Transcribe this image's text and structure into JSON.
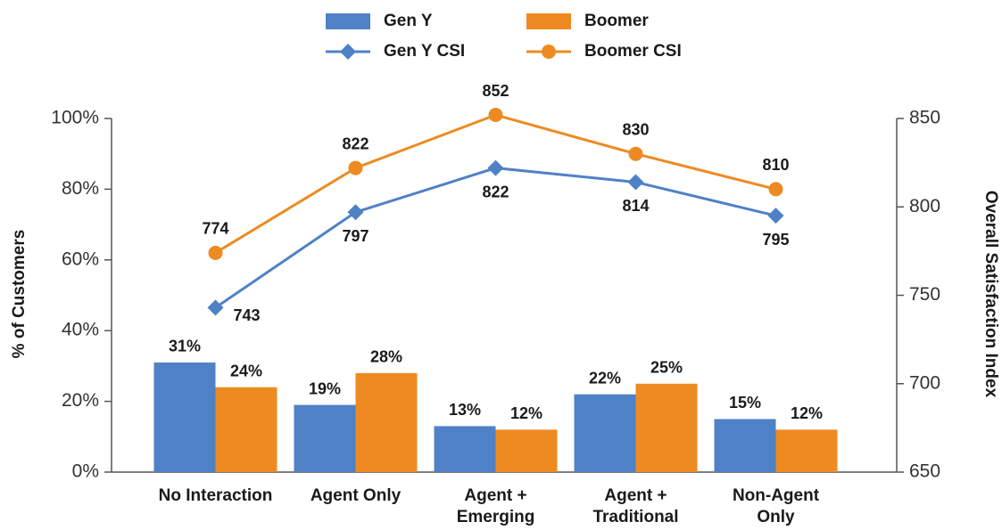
{
  "chart_data": {
    "type": "combo",
    "categories": [
      "No Interaction",
      "Agent Only",
      "Agent +\nEmerging",
      "Agent +\nTraditional",
      "Non-Agent\nOnly"
    ],
    "y_label": "% of Customers",
    "y2_label": "Overall Satisfaction Index",
    "ylim": [
      0,
      100
    ],
    "yticks": [
      {
        "value": 0,
        "label": "0%"
      },
      {
        "value": 20,
        "label": "20%"
      },
      {
        "value": 40,
        "label": "40%"
      },
      {
        "value": 60,
        "label": "60%"
      },
      {
        "value": 80,
        "label": "80%"
      },
      {
        "value": 100,
        "label": "100%"
      }
    ],
    "y2lim": [
      650,
      850
    ],
    "y2ticks": [
      650,
      700,
      750,
      800,
      850
    ],
    "series": [
      {
        "name": "Gen Y",
        "type": "bar",
        "color": "#4f81c7",
        "values": [
          31,
          19,
          13,
          22,
          15
        ],
        "value_labels": [
          "31%",
          "19%",
          "13%",
          "22%",
          "15%"
        ]
      },
      {
        "name": "Boomer",
        "type": "bar",
        "color": "#ee8a22",
        "values": [
          24,
          28,
          12,
          25,
          12
        ],
        "value_labels": [
          "24%",
          "28%",
          "12%",
          "25%",
          "12%"
        ]
      },
      {
        "name": "Gen Y CSI",
        "type": "line",
        "marker": "diamond",
        "axis": "y2",
        "color": "#4f81c7",
        "values": [
          743,
          797,
          822,
          814,
          795
        ]
      },
      {
        "name": "Boomer CSI",
        "type": "line",
        "marker": "circle",
        "axis": "y2",
        "color": "#ee8a22",
        "values": [
          774,
          822,
          852,
          830,
          810
        ]
      }
    ]
  }
}
